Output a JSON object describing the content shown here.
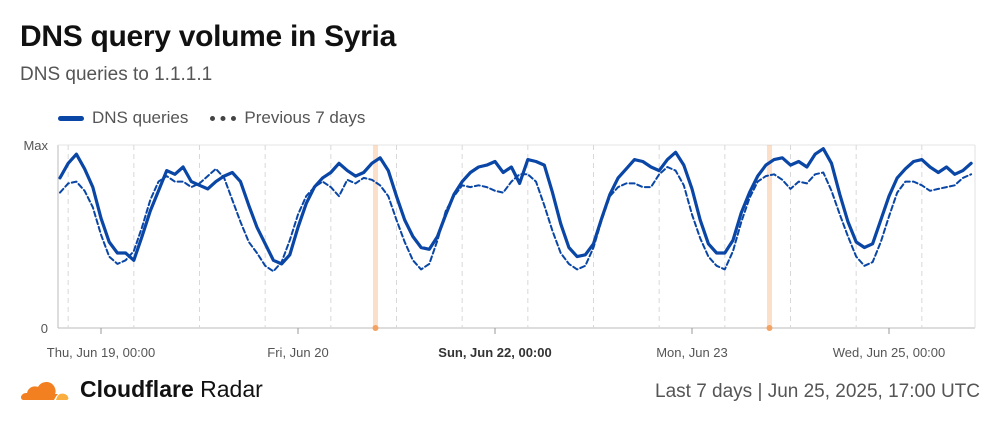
{
  "header": {
    "title": "DNS query volume in Syria",
    "subtitle": "DNS queries to 1.1.1.1"
  },
  "footer": {
    "brand_bold": "Cloudflare",
    "brand_light": "Radar",
    "range_label": "Last 7 days",
    "separator": "|",
    "timestamp": "Jun 25, 2025, 17:00 UTC"
  },
  "colors": {
    "current": "#0a46a5",
    "previous": "#0a46a5",
    "highlight": "#f4a261",
    "grid": "#d0d0d0",
    "logo_orange": "#f38020"
  },
  "chart_data": {
    "type": "line",
    "title": "DNS query volume in Syria",
    "subtitle": "DNS queries to 1.1.1.1",
    "yticks": [
      "0",
      "Max"
    ],
    "ylim": [
      0,
      1
    ],
    "xlim": [
      -5,
      155
    ],
    "x_unit": "hours since Thu, Jun 19, 00:00",
    "xticks": [
      {
        "x": 0,
        "label": "Thu, Jun 19, 00:00",
        "bold": false
      },
      {
        "x": 48,
        "label": "Fri, Jun 20",
        "bold": false
      },
      {
        "x": 96,
        "label": "Sun, Jun 22, 00:00",
        "bold": true
      },
      {
        "x": 144,
        "label": "Mon, Jun 23",
        "bold": false
      },
      {
        "x": 192,
        "label": "Wed, Jun 25, 00:00",
        "bold": false
      }
    ],
    "highlights": [
      70,
      166
    ],
    "legend": [
      {
        "name": "DNS queries",
        "style": "solid"
      },
      {
        "name": "Previous 7 days",
        "style": "dashed"
      }
    ],
    "series": [
      {
        "name": "DNS queries",
        "style": "solid",
        "x_start": -10,
        "x_step": 2,
        "values": [
          0.82,
          0.9,
          0.95,
          0.87,
          0.77,
          0.6,
          0.47,
          0.41,
          0.41,
          0.37,
          0.5,
          0.64,
          0.75,
          0.86,
          0.84,
          0.88,
          0.8,
          0.78,
          0.76,
          0.8,
          0.83,
          0.85,
          0.8,
          0.67,
          0.55,
          0.46,
          0.37,
          0.35,
          0.4,
          0.55,
          0.68,
          0.77,
          0.82,
          0.85,
          0.9,
          0.86,
          0.83,
          0.85,
          0.9,
          0.93,
          0.86,
          0.72,
          0.59,
          0.5,
          0.44,
          0.43,
          0.5,
          0.62,
          0.73,
          0.8,
          0.85,
          0.88,
          0.89,
          0.91,
          0.85,
          0.88,
          0.79,
          0.92,
          0.91,
          0.89,
          0.74,
          0.57,
          0.44,
          0.39,
          0.4,
          0.46,
          0.6,
          0.73,
          0.82,
          0.87,
          0.92,
          0.91,
          0.88,
          0.86,
          0.92,
          0.96,
          0.89,
          0.76,
          0.59,
          0.46,
          0.41,
          0.41,
          0.48,
          0.63,
          0.74,
          0.83,
          0.89,
          0.92,
          0.93,
          0.89,
          0.91,
          0.88,
          0.95,
          0.98,
          0.9,
          0.73,
          0.58,
          0.47,
          0.44,
          0.46,
          0.59,
          0.72,
          0.82,
          0.87,
          0.91,
          0.92,
          0.88,
          0.85,
          0.88,
          0.84,
          0.86,
          0.9,
          0.82,
          0.63,
          0.53,
          0.45,
          0.43,
          0.5,
          0.65,
          0.75,
          0.84,
          0.9,
          0.96,
          0.93,
          0.88,
          0.85,
          0.86,
          0.9,
          0.92,
          0.86,
          0.64,
          0.56,
          0.46,
          0.41,
          0.44,
          0.54,
          0.7,
          0.84,
          0.87,
          0.89,
          0.89,
          0.88,
          0.86,
          0.88
        ]
      },
      {
        "name": "Previous 7 days",
        "style": "dashed",
        "x_start": -10,
        "x_step": 2,
        "values": [
          0.74,
          0.79,
          0.8,
          0.75,
          0.66,
          0.51,
          0.39,
          0.35,
          0.37,
          0.42,
          0.55,
          0.7,
          0.8,
          0.83,
          0.8,
          0.8,
          0.77,
          0.79,
          0.83,
          0.87,
          0.82,
          0.7,
          0.58,
          0.47,
          0.41,
          0.34,
          0.31,
          0.36,
          0.48,
          0.62,
          0.72,
          0.77,
          0.8,
          0.77,
          0.72,
          0.81,
          0.79,
          0.82,
          0.81,
          0.78,
          0.72,
          0.59,
          0.47,
          0.37,
          0.32,
          0.35,
          0.48,
          0.64,
          0.72,
          0.78,
          0.77,
          0.78,
          0.77,
          0.75,
          0.74,
          0.8,
          0.84,
          0.84,
          0.8,
          0.67,
          0.53,
          0.41,
          0.35,
          0.32,
          0.34,
          0.44,
          0.59,
          0.72,
          0.77,
          0.79,
          0.79,
          0.77,
          0.77,
          0.84,
          0.88,
          0.86,
          0.78,
          0.62,
          0.49,
          0.39,
          0.34,
          0.32,
          0.42,
          0.58,
          0.71,
          0.8,
          0.83,
          0.84,
          0.81,
          0.76,
          0.8,
          0.79,
          0.84,
          0.85,
          0.75,
          0.62,
          0.5,
          0.39,
          0.34,
          0.36,
          0.47,
          0.61,
          0.74,
          0.8,
          0.8,
          0.78,
          0.75,
          0.76,
          0.77,
          0.78,
          0.82,
          0.84,
          0.8,
          0.66,
          0.51,
          0.39,
          0.33,
          0.36,
          0.48,
          0.63,
          0.74,
          0.8,
          0.8,
          0.8,
          0.79,
          0.78,
          0.84,
          0.88,
          0.9,
          0.81,
          0.66,
          0.52,
          0.42,
          0.38,
          0.42,
          0.57,
          0.68,
          0.74,
          0.79,
          0.78,
          0.83,
          0.81
        ]
      }
    ]
  }
}
